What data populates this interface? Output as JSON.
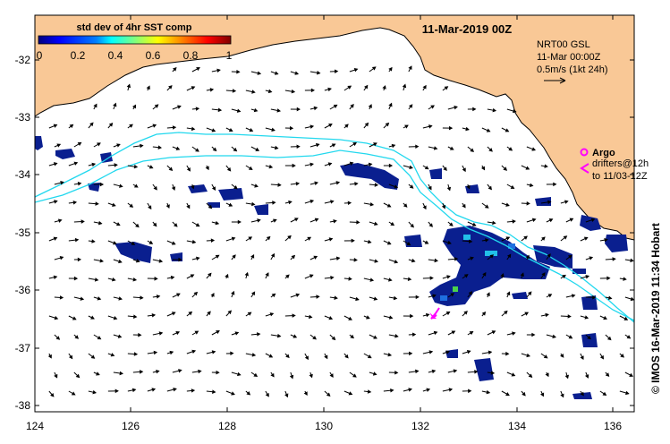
{
  "title": "11-Mar-2019 00Z",
  "colorbar": {
    "label": "std dev of 4hr SST comp",
    "ticks": [
      "0",
      "0.2",
      "0.4",
      "0.6",
      "0.8",
      "1"
    ],
    "colors": [
      "#00007f",
      "#0000ff",
      "#007fff",
      "#00ffff",
      "#7fff7f",
      "#ffff00",
      "#ff7f00",
      "#ff0000",
      "#7f0000"
    ]
  },
  "info": {
    "line1": "NRT00 GSL",
    "line2": "11-Mar 00:00Z",
    "line3": "0.5m/s (1kt 24h)"
  },
  "legend": {
    "argo_label": "Argo",
    "drifters_line1": "drifters@12h",
    "drifters_line2": "to 11/03-12Z",
    "argo_color": "#ff00ff",
    "drifter_color": "#ff00ff"
  },
  "axes": {
    "y_ticks": [
      "-32",
      "-33",
      "-34",
      "-35",
      "-36",
      "-37",
      "-38"
    ],
    "x_ticks": [
      "124",
      "126",
      "128",
      "130",
      "132",
      "134",
      "136"
    ]
  },
  "credit": "© IMOS 16-Mar-2019 11:34 Hobart",
  "colors": {
    "land": "#f9c896",
    "contour": "#22d8ee",
    "sst_patch": "#0a1f8f",
    "arrow": "#000000"
  }
}
